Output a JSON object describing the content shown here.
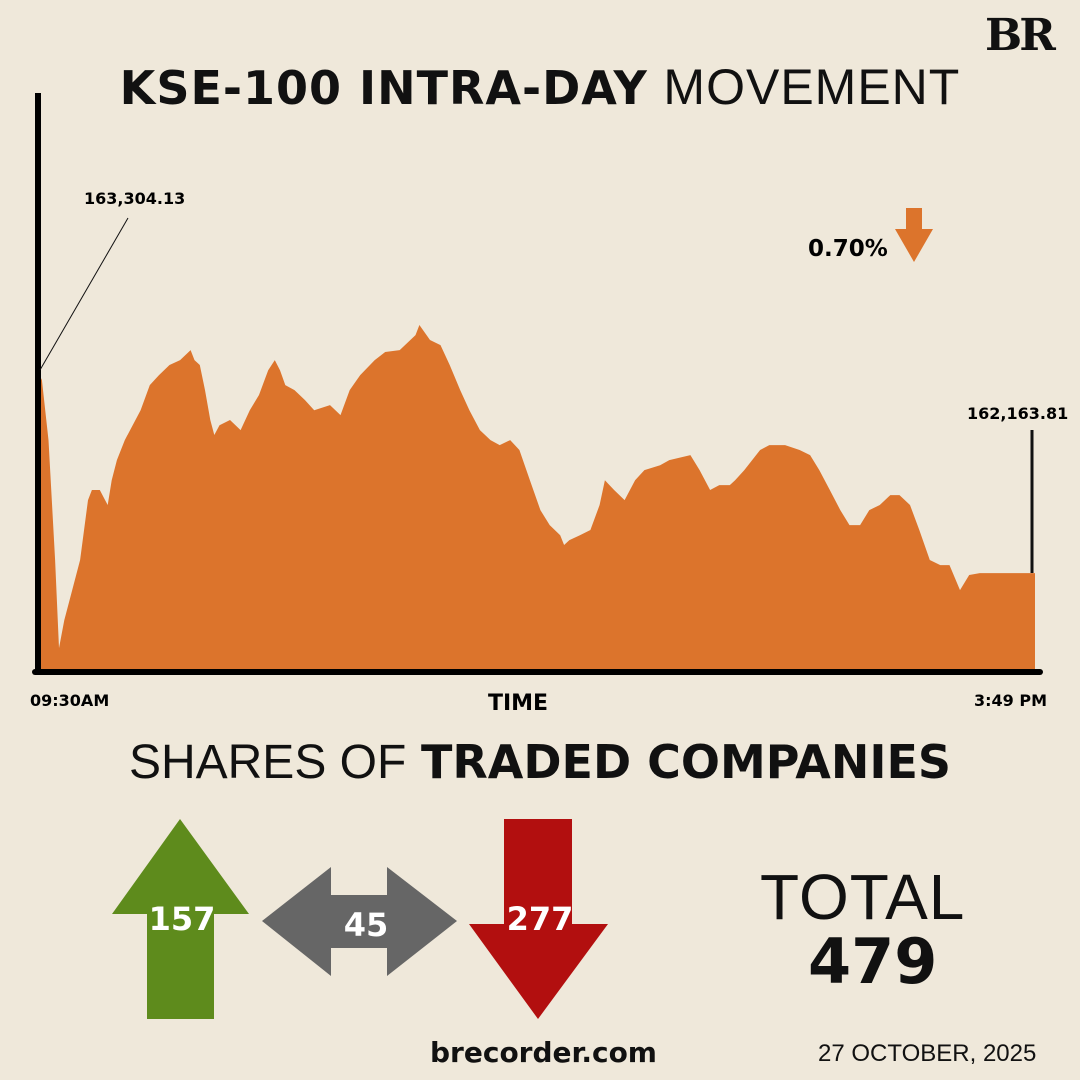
{
  "logo": "BR",
  "title": {
    "bold": "KSE-100 INTRA-DAY",
    "light": "MOVEMENT"
  },
  "chart_data": {
    "type": "area",
    "title": "KSE-100 INTRA-DAY MOVEMENT",
    "xlabel": "TIME",
    "ylabel": "",
    "x_unit": "minutes since 09:30",
    "x_start_label": "09:30AM",
    "x_end_label": "3:49 PM",
    "xlim": [
      0,
      379
    ],
    "ylim": [
      161614,
      164876
    ],
    "open_label": "163,304.13",
    "close_label": "162,163.81",
    "change_label": "0.70%",
    "change_direction": "down",
    "color": "#dc742c",
    "points": [
      [
        0,
        163304
      ],
      [
        1.5,
        163259
      ],
      [
        4,
        162918
      ],
      [
        6.5,
        162238
      ],
      [
        8,
        161738
      ],
      [
        10,
        161897
      ],
      [
        13,
        162067
      ],
      [
        16,
        162238
      ],
      [
        19,
        162578
      ],
      [
        20.5,
        162635
      ],
      [
        23.5,
        162635
      ],
      [
        25.5,
        162578
      ],
      [
        26.5,
        162550
      ],
      [
        28,
        162691
      ],
      [
        30,
        162805
      ],
      [
        33,
        162918
      ],
      [
        35,
        162975
      ],
      [
        39,
        163088
      ],
      [
        42.5,
        163230
      ],
      [
        46,
        163287
      ],
      [
        50,
        163344
      ],
      [
        54,
        163372
      ],
      [
        58,
        163429
      ],
      [
        59.5,
        163372
      ],
      [
        61.5,
        163344
      ],
      [
        63.5,
        163202
      ],
      [
        65.5,
        163032
      ],
      [
        67,
        162947
      ],
      [
        69,
        163003
      ],
      [
        73,
        163032
      ],
      [
        77,
        162975
      ],
      [
        80.5,
        163088
      ],
      [
        84,
        163174
      ],
      [
        87.5,
        163315
      ],
      [
        90,
        163372
      ],
      [
        92,
        163315
      ],
      [
        94,
        163230
      ],
      [
        97.5,
        163202
      ],
      [
        101.5,
        163145
      ],
      [
        105,
        163088
      ],
      [
        111,
        163117
      ],
      [
        115,
        163060
      ],
      [
        118.5,
        163202
      ],
      [
        122.5,
        163287
      ],
      [
        128,
        163372
      ],
      [
        132,
        163418
      ],
      [
        137.5,
        163429
      ],
      [
        143.5,
        163514
      ],
      [
        145,
        163571
      ],
      [
        149,
        163486
      ],
      [
        153,
        163457
      ],
      [
        156.5,
        163344
      ],
      [
        160.5,
        163202
      ],
      [
        164,
        163088
      ],
      [
        168,
        162975
      ],
      [
        172,
        162918
      ],
      [
        175.5,
        162890
      ],
      [
        179.5,
        162918
      ],
      [
        183,
        162862
      ],
      [
        187,
        162691
      ],
      [
        191,
        162521
      ],
      [
        194.5,
        162436
      ],
      [
        198.5,
        162379
      ],
      [
        200,
        162323
      ],
      [
        202,
        162351
      ],
      [
        206,
        162379
      ],
      [
        210,
        162408
      ],
      [
        213.5,
        162550
      ],
      [
        215.5,
        162691
      ],
      [
        219,
        162635
      ],
      [
        223,
        162578
      ],
      [
        227,
        162691
      ],
      [
        230.5,
        162748
      ],
      [
        236.5,
        162776
      ],
      [
        240,
        162805
      ],
      [
        248,
        162833
      ],
      [
        251.5,
        162748
      ],
      [
        255.5,
        162635
      ],
      [
        259,
        162663
      ],
      [
        263,
        162663
      ],
      [
        265,
        162691
      ],
      [
        268.5,
        162748
      ],
      [
        274.5,
        162862
      ],
      [
        278,
        162890
      ],
      [
        284,
        162890
      ],
      [
        289.5,
        162862
      ],
      [
        293.5,
        162833
      ],
      [
        297,
        162748
      ],
      [
        301,
        162635
      ],
      [
        305,
        162521
      ],
      [
        308.5,
        162436
      ],
      [
        312.5,
        162436
      ],
      [
        316,
        162521
      ],
      [
        320,
        162550
      ],
      [
        324,
        162606
      ],
      [
        327.5,
        162606
      ],
      [
        331.5,
        162550
      ],
      [
        335,
        162408
      ],
      [
        339,
        162238
      ],
      [
        343,
        162209
      ],
      [
        346.5,
        162209
      ],
      [
        350.5,
        162067
      ],
      [
        354,
        162153
      ],
      [
        358,
        162164
      ],
      [
        379,
        162164
      ]
    ]
  },
  "shares": {
    "title_light": "SHARES OF",
    "title_bold": "TRADED COMPANIES",
    "advanced": 157,
    "unchanged": 45,
    "declined": 277,
    "total_label": "TOTAL",
    "total": 479,
    "colors": {
      "advanced": "#5e8b1c",
      "unchanged": "#666666",
      "declined": "#b20f0f"
    }
  },
  "footer": {
    "site": "brecorder.com",
    "date": "27 OCTOBER, 2025"
  }
}
